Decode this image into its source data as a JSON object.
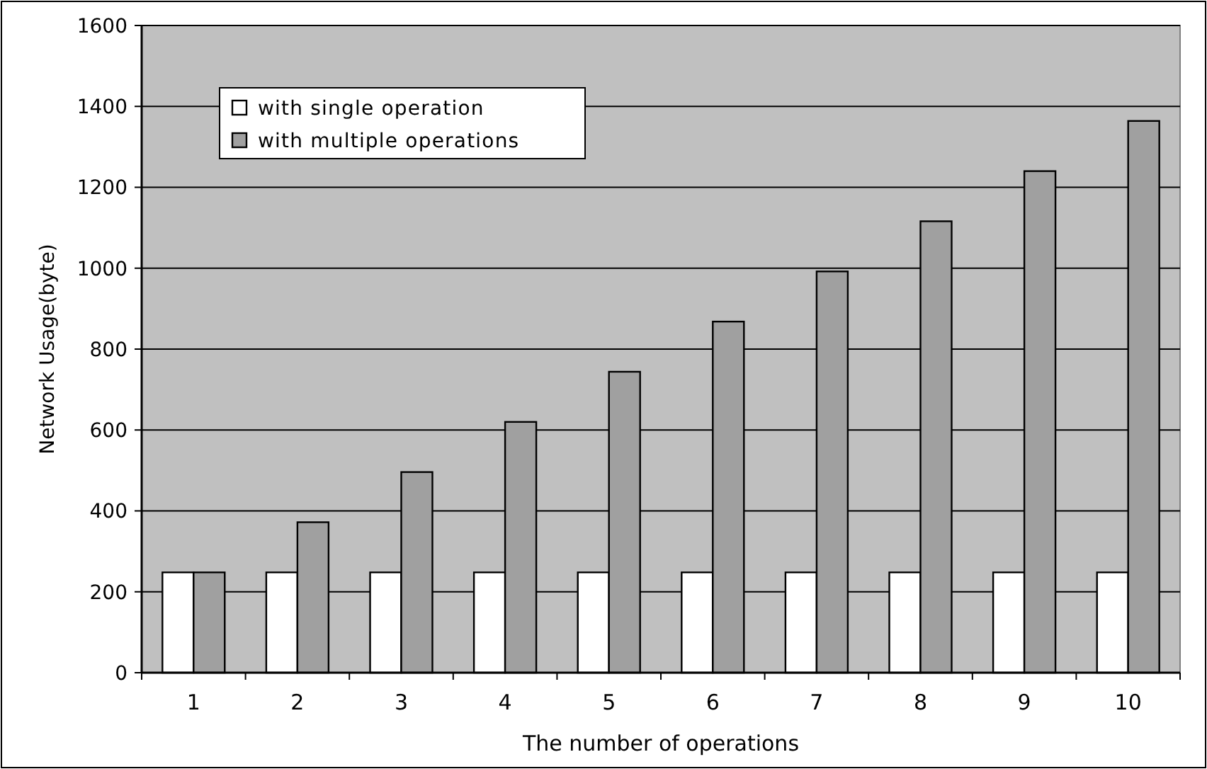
{
  "chart_data": {
    "type": "bar",
    "xlabel": "The number of operations",
    "ylabel": "Network Usage(byte)",
    "categories": [
      "1",
      "2",
      "3",
      "4",
      "5",
      "6",
      "7",
      "8",
      "9",
      "10"
    ],
    "series": [
      {
        "name": "with single operation",
        "color": "#ffffff",
        "values": [
          248,
          248,
          248,
          248,
          248,
          248,
          248,
          248,
          248,
          248
        ]
      },
      {
        "name": "with multiple operations",
        "color": "#a0a0a0",
        "values": [
          248,
          372,
          496,
          620,
          744,
          868,
          992,
          1116,
          1240,
          1364
        ]
      }
    ],
    "ylim": [
      0,
      1600
    ],
    "yticks": [
      0,
      200,
      400,
      600,
      800,
      1000,
      1200,
      1400,
      1600
    ],
    "grid": "y",
    "legend": "top left"
  }
}
